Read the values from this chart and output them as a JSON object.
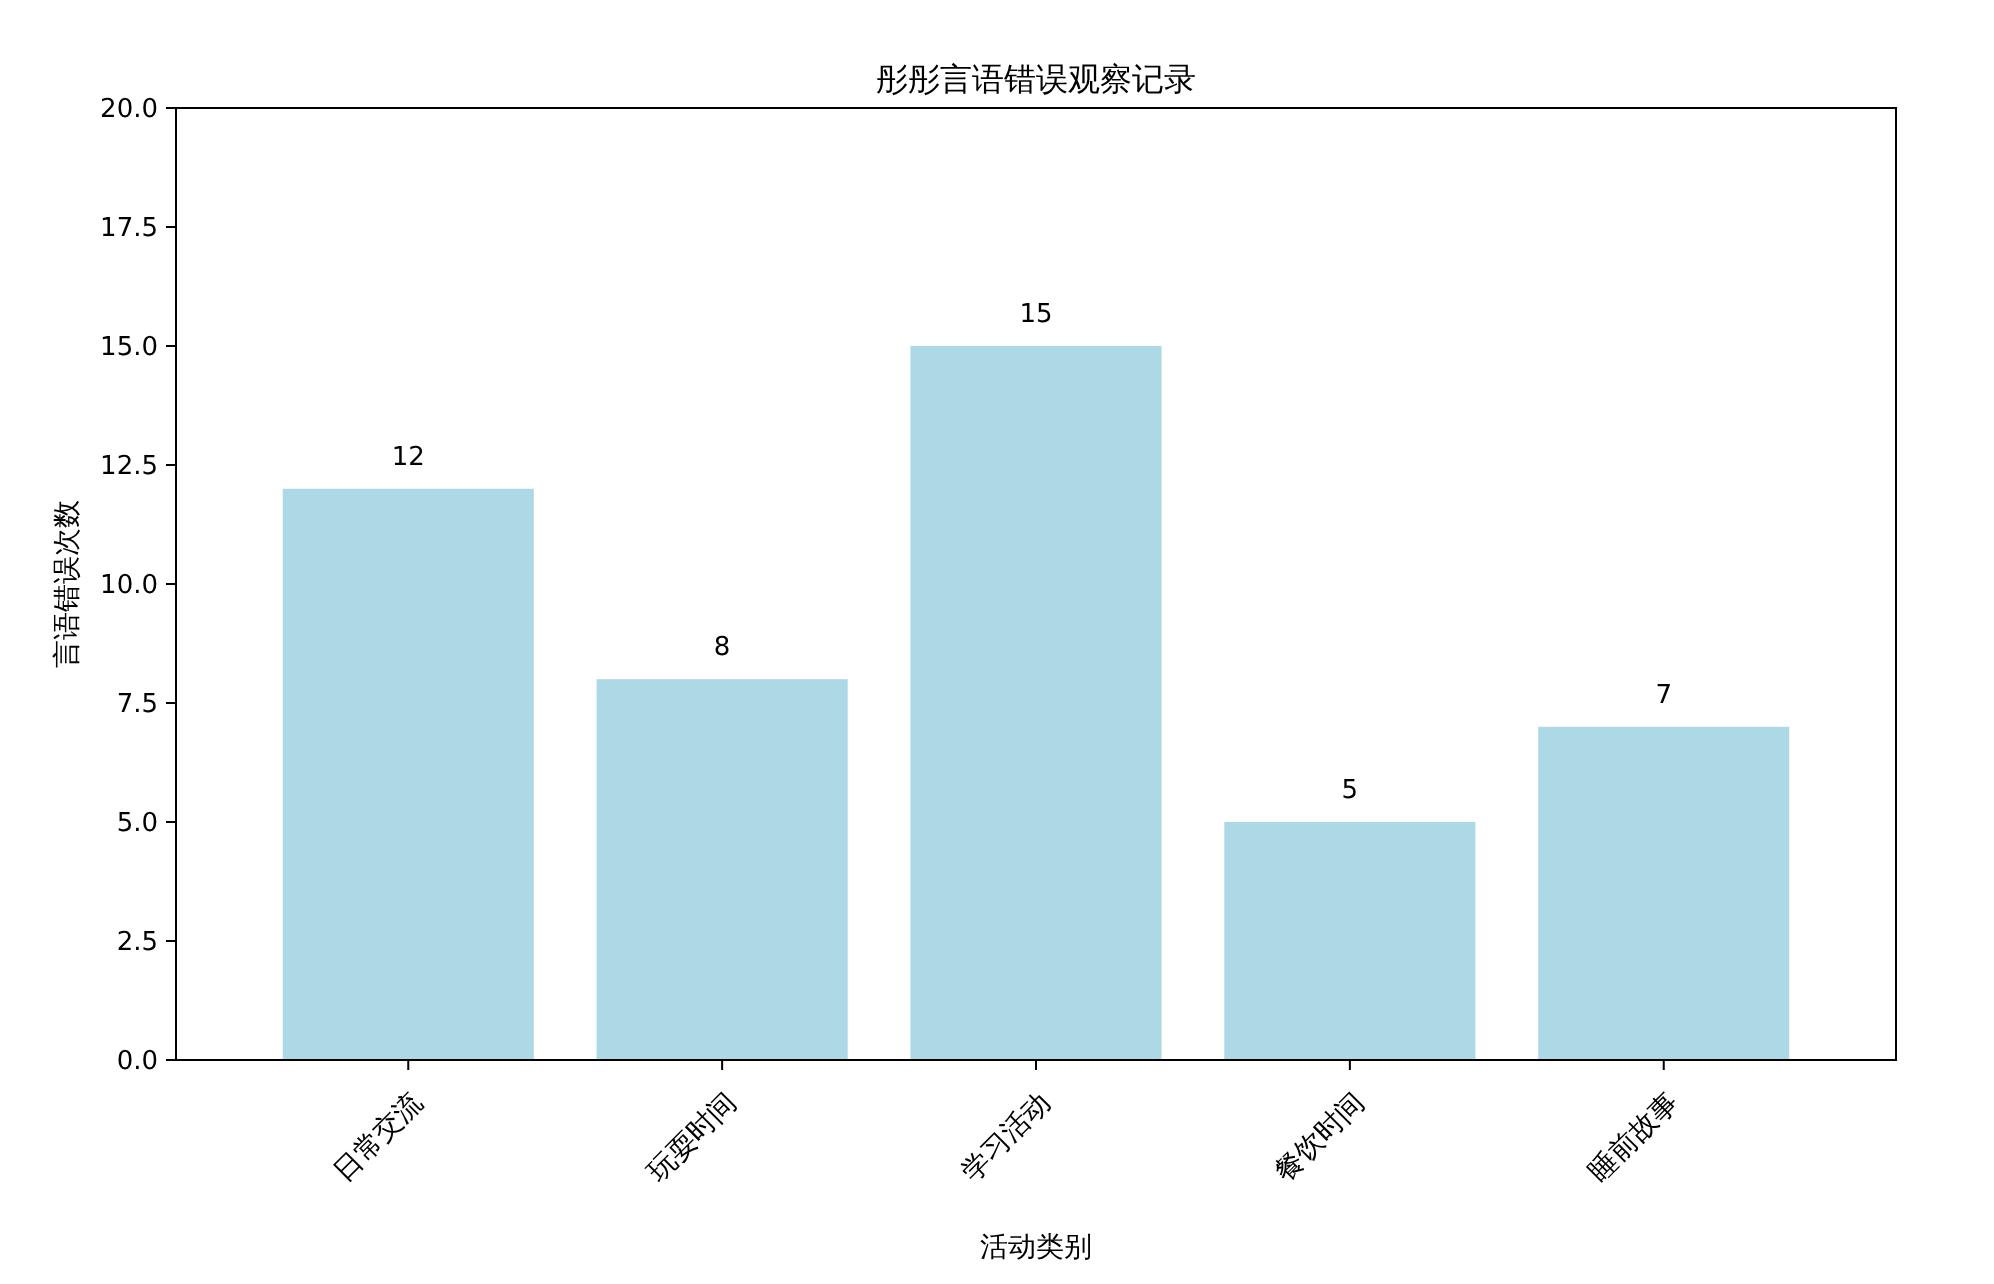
{
  "chart_data": {
    "type": "bar",
    "title": "彤彤言语错误观察记录",
    "xlabel": "活动类别",
    "ylabel": "言语错误次数",
    "categories": [
      "日常交流",
      "玩耍时间",
      "学习活动",
      "餐饮时间",
      "睡前故事"
    ],
    "values": [
      12,
      8,
      15,
      5,
      7
    ],
    "color": "#add8e6",
    "data_labels": true,
    "ylim": [
      0,
      20
    ],
    "yticks": [
      {
        "value": 0,
        "label": "0.0"
      },
      {
        "value": 2.5,
        "label": "2.5"
      },
      {
        "value": 5,
        "label": "5.0"
      },
      {
        "value": 7.5,
        "label": "7.5"
      },
      {
        "value": 10,
        "label": "10.0"
      },
      {
        "value": 12.5,
        "label": "12.5"
      },
      {
        "value": 15,
        "label": "15.0"
      },
      {
        "value": 17.5,
        "label": "17.5"
      },
      {
        "value": 20,
        "label": "20.0"
      }
    ]
  }
}
